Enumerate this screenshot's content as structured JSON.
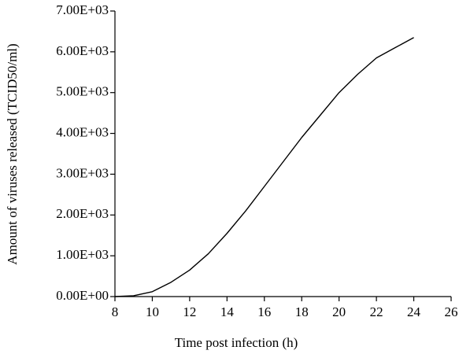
{
  "chart_data": {
    "type": "line",
    "xlabel": "Time post infection (h)",
    "ylabel": "Amount of viruses released (TCID50/ml)",
    "x": [
      8,
      9,
      10,
      11,
      12,
      13,
      14,
      15,
      16,
      17,
      18,
      19,
      20,
      21,
      22,
      23,
      24
    ],
    "values": [
      0,
      20,
      120,
      350,
      650,
      1050,
      1550,
      2100,
      2700,
      3300,
      3900,
      4450,
      5000,
      5450,
      5850,
      6100,
      6350
    ],
    "color": "#000000",
    "xlim": [
      8,
      26
    ],
    "xticks": [
      8,
      10,
      12,
      14,
      16,
      18,
      20,
      22,
      24,
      26
    ],
    "ylim": [
      0,
      7000
    ],
    "yticks": [
      {
        "value": 0,
        "label": "0.00E+00"
      },
      {
        "value": 1000,
        "label": "1.00E+03"
      },
      {
        "value": 2000,
        "label": "2.00E+03"
      },
      {
        "value": 3000,
        "label": "3.00E+03"
      },
      {
        "value": 4000,
        "label": "4.00E+03"
      },
      {
        "value": 5000,
        "label": "5.00E+03"
      },
      {
        "value": 6000,
        "label": "6.00E+03"
      },
      {
        "value": 7000,
        "label": "7.00E+03"
      }
    ],
    "grid": false
  }
}
